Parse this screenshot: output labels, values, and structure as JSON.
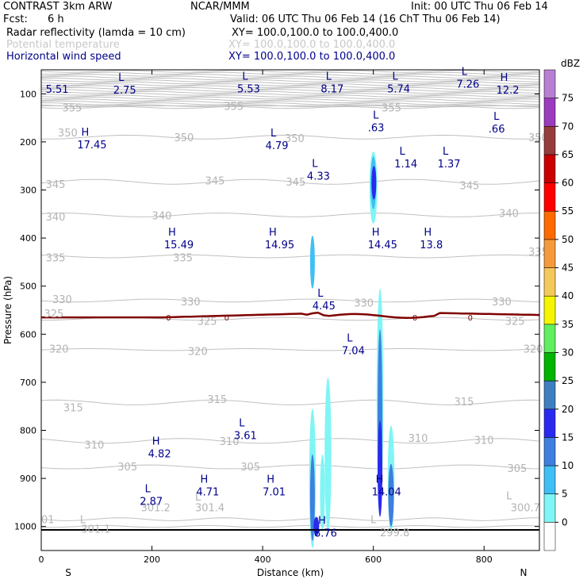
{
  "header": {
    "model": "CONTRAST 3km ARW",
    "institution": "NCAR/MMM",
    "init": "Init: 00 UTC Thu 06 Feb 14",
    "fcst_label": "Fcst:",
    "fcst_value": "6 h",
    "valid": "Valid: 06 UTC Thu 06 Feb 14 (16 ChT Thu 06 Feb 14)",
    "line1_field": "Radar reflectivity (lamda = 10 cm)",
    "line1_xy": "XY= 100.0,100.0 to 100.0,400.0",
    "line2_field": "Potential temperature",
    "line2_xy": "XY= 100.0,100.0 to 100.0,400.0",
    "line3_field": "Horizontal wind speed",
    "line3_xy": "XY= 100.0,100.0 to 100.0,400.0"
  },
  "colors": {
    "navy": "#00008b",
    "theta_gray": "#c0c0c0",
    "zero_line": "#800000"
  },
  "chart_data": {
    "type": "cross-section",
    "xlabel": "Distance (km)",
    "ylabel": "Pressure (hPa)",
    "xlim": [
      0,
      900
    ],
    "ylim": [
      1050,
      50
    ],
    "x_ticks": [
      0,
      200,
      400,
      600,
      800
    ],
    "y_ticks": [
      100,
      200,
      300,
      400,
      500,
      600,
      700,
      800,
      900,
      1000
    ],
    "left_end_label": "S",
    "right_end_label": "N",
    "colorbar": {
      "unit": "dBZ",
      "levels": [
        0,
        5,
        10,
        15,
        20,
        25,
        30,
        35,
        40,
        45,
        50,
        55,
        60,
        65,
        70,
        75
      ],
      "colors": [
        "#ffffff",
        "#7ff5f5",
        "#3fbff5",
        "#3f7fdf",
        "#2a2aef",
        "#3f7fbf",
        "#00b400",
        "#5fef5f",
        "#f5f500",
        "#f5c85a",
        "#f59a3c",
        "#ff6a00",
        "#ff0000",
        "#c80000",
        "#963c3c",
        "#9b3cbf",
        "#b97fd2"
      ]
    },
    "theta_labels": [
      {
        "x": 330,
        "p": 125,
        "text": "355"
      },
      {
        "x": 615,
        "p": 128,
        "text": "355"
      },
      {
        "x": 38,
        "p": 128,
        "text": "355"
      },
      {
        "x": 30,
        "p": 180,
        "text": "350"
      },
      {
        "x": 240,
        "p": 190,
        "text": "350"
      },
      {
        "x": 440,
        "p": 192,
        "text": "350"
      },
      {
        "x": 880,
        "p": 190,
        "text": "350"
      },
      {
        "x": 8,
        "p": 288,
        "text": "345"
      },
      {
        "x": 296,
        "p": 280,
        "text": "345"
      },
      {
        "x": 442,
        "p": 283,
        "text": "345"
      },
      {
        "x": 756,
        "p": 290,
        "text": "345"
      },
      {
        "x": 8,
        "p": 355,
        "text": "340"
      },
      {
        "x": 200,
        "p": 353,
        "text": "340"
      },
      {
        "x": 827,
        "p": 348,
        "text": "340"
      },
      {
        "x": 8,
        "p": 440,
        "text": "335"
      },
      {
        "x": 238,
        "p": 440,
        "text": "335"
      },
      {
        "x": 880,
        "p": 428,
        "text": "335"
      },
      {
        "x": 20,
        "p": 527,
        "text": "330"
      },
      {
        "x": 252,
        "p": 532,
        "text": "330"
      },
      {
        "x": 565,
        "p": 534,
        "text": "330"
      },
      {
        "x": 814,
        "p": 532,
        "text": "330"
      },
      {
        "x": 5,
        "p": 557,
        "text": "325"
      },
      {
        "x": 282,
        "p": 572,
        "text": "325"
      },
      {
        "x": 838,
        "p": 572,
        "text": "325"
      },
      {
        "x": 14,
        "p": 630,
        "text": "320"
      },
      {
        "x": 265,
        "p": 635,
        "text": "320"
      },
      {
        "x": 871,
        "p": 630,
        "text": "320"
      },
      {
        "x": 40,
        "p": 752,
        "text": "315"
      },
      {
        "x": 300,
        "p": 735,
        "text": "315"
      },
      {
        "x": 746,
        "p": 740,
        "text": "315"
      },
      {
        "x": 78,
        "p": 830,
        "text": "310"
      },
      {
        "x": 322,
        "p": 822,
        "text": "310"
      },
      {
        "x": 663,
        "p": 816,
        "text": "310"
      },
      {
        "x": 782,
        "p": 820,
        "text": "310"
      },
      {
        "x": 138,
        "p": 875,
        "text": "305"
      },
      {
        "x": 360,
        "p": 875,
        "text": "305"
      },
      {
        "x": 842,
        "p": 878,
        "text": "305"
      },
      {
        "x": 0,
        "p": 985,
        "text": "01"
      },
      {
        "x": 180,
        "p": 960,
        "text": "301.2"
      },
      {
        "x": 278,
        "p": 960,
        "text": "301.4"
      },
      {
        "x": 848,
        "p": 960,
        "text": "300.7"
      },
      {
        "x": 72,
        "p": 1005,
        "text": "301.1"
      },
      {
        "x": 612,
        "p": 1012,
        "text": "299.8"
      }
    ],
    "theta_markers": [
      {
        "x": 278,
        "p": 938,
        "text": "L"
      },
      {
        "x": 840,
        "p": 935,
        "text": "L"
      },
      {
        "x": 70,
        "p": 985,
        "text": "L"
      },
      {
        "x": 595,
        "p": 985,
        "text": "L"
      }
    ],
    "wind_labels": [
      {
        "x": 8,
        "p": 85,
        "text": "5.51"
      },
      {
        "x": 130,
        "p": 86,
        "sym": "L",
        "text": "2.75"
      },
      {
        "x": 354,
        "p": 84,
        "sym": "L",
        "text": "5.53"
      },
      {
        "x": 505,
        "p": 84,
        "sym": "L",
        "text": "8.17"
      },
      {
        "x": 625,
        "p": 84,
        "sym": "L",
        "text": "5.74"
      },
      {
        "x": 750,
        "p": 74,
        "sym": "L",
        "text": "7.26"
      },
      {
        "x": 822,
        "p": 86,
        "sym": "H",
        "text": "12.2"
      },
      {
        "x": 590,
        "p": 165,
        "sym": "L",
        "text": ".63"
      },
      {
        "x": 808,
        "p": 167,
        "sym": "L",
        "text": ".66"
      },
      {
        "x": 65,
        "p": 200,
        "sym": "H",
        "text": "17.45"
      },
      {
        "x": 405,
        "p": 202,
        "sym": "L",
        "text": "4.79"
      },
      {
        "x": 638,
        "p": 240,
        "sym": "L",
        "text": "1.14"
      },
      {
        "x": 716,
        "p": 240,
        "sym": "L",
        "text": "1.37"
      },
      {
        "x": 480,
        "p": 265,
        "sym": "L",
        "text": "4.33"
      },
      {
        "x": 222,
        "p": 408,
        "sym": "H",
        "text": "15.49"
      },
      {
        "x": 404,
        "p": 408,
        "sym": "H",
        "text": "14.95"
      },
      {
        "x": 590,
        "p": 408,
        "sym": "H",
        "text": "14.45"
      },
      {
        "x": 684,
        "p": 408,
        "sym": "H",
        "text": "13.8"
      },
      {
        "x": 490,
        "p": 535,
        "sym": "L",
        "text": "4.45"
      },
      {
        "x": 543,
        "p": 628,
        "sym": "L",
        "text": "7.04"
      },
      {
        "x": 348,
        "p": 805,
        "sym": "L",
        "text": "3.61"
      },
      {
        "x": 193,
        "p": 843,
        "sym": "H",
        "text": "4.82"
      },
      {
        "x": 280,
        "p": 922,
        "sym": "H",
        "text": "4.71"
      },
      {
        "x": 400,
        "p": 922,
        "sym": "H",
        "text": "7.01"
      },
      {
        "x": 597,
        "p": 922,
        "sym": "H",
        "text": "14.04"
      },
      {
        "x": 178,
        "p": 942,
        "sym": "L",
        "text": "2.87"
      },
      {
        "x": 493,
        "p": 1008,
        "sym": "H",
        "text": "8.76"
      }
    ],
    "zero_isotherm_label": "0"
  }
}
